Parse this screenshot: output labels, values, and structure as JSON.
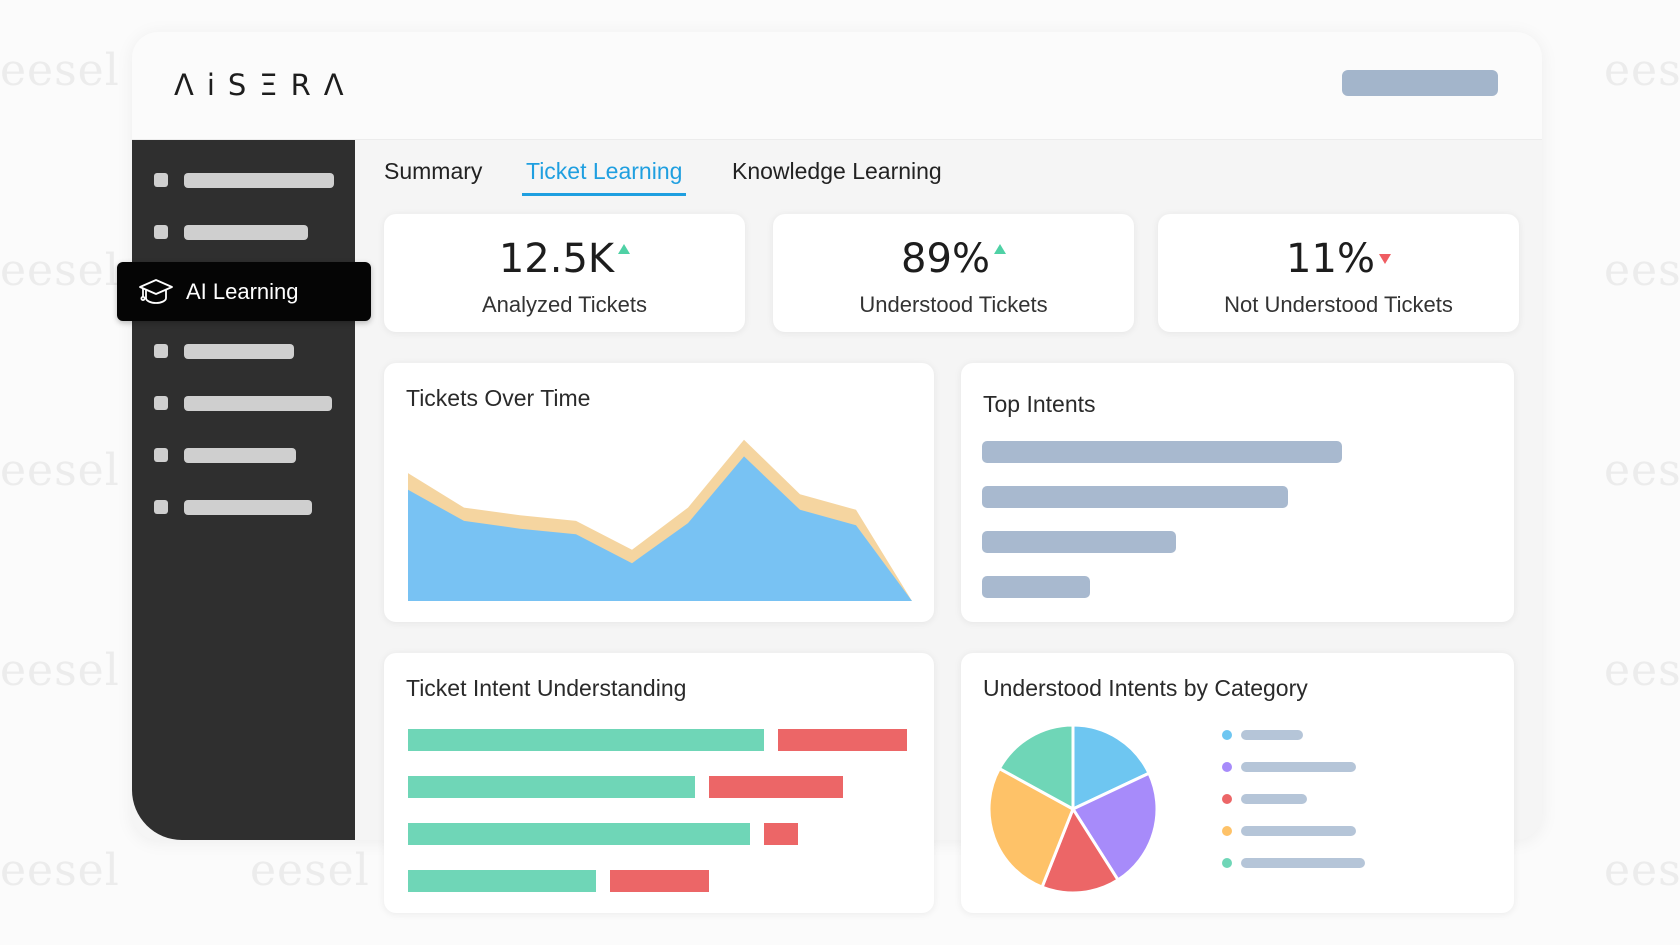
{
  "watermark": {
    "text": "eesel"
  },
  "header": {
    "logo": "ΛiSΞRΛ"
  },
  "sidebar": {
    "active_item": {
      "label": "AI Learning",
      "icon": "graduation-cap-icon"
    }
  },
  "tabs": [
    {
      "label": "Summary"
    },
    {
      "label": "Ticket Learning",
      "active": true
    },
    {
      "label": "Knowledge Learning"
    }
  ],
  "stats": [
    {
      "value": "12.5K",
      "label": "Analyzed Tickets",
      "trend": "up"
    },
    {
      "value": "89%",
      "label": "Understood Tickets",
      "trend": "up"
    },
    {
      "value": "11%",
      "label": "Not Understood Tickets",
      "trend": "down"
    }
  ],
  "cards": {
    "tickets_over_time": {
      "title": "Tickets Over Time"
    },
    "top_intents": {
      "title": "Top Intents"
    },
    "ticket_intent_understanding": {
      "title": "Ticket Intent Understanding"
    },
    "understood_by_category": {
      "title": "Understood Intents by Category"
    }
  },
  "colors": {
    "accent": "#1f9fe0",
    "area_blue": "#78c2f3",
    "area_orange": "#f5d5a0",
    "green": "#6fd6b7",
    "red": "#ec6667",
    "placeholder": "#a8b9cf"
  },
  "chart_data": [
    {
      "type": "area",
      "title": "Tickets Over Time",
      "x": [
        0,
        1,
        2,
        3,
        4,
        5,
        6,
        7,
        8,
        9
      ],
      "series": [
        {
          "values": [
            100,
            72,
            65,
            60,
            34,
            70,
            130,
            82,
            68,
            0
          ]
        },
        {
          "values": [
            115,
            84,
            77,
            72,
            46,
            84,
            145,
            96,
            82,
            0
          ]
        }
      ],
      "ylim": [
        0,
        160
      ]
    },
    {
      "type": "bar",
      "title": "Top Intents",
      "values": [
        100,
        85,
        54,
        30
      ],
      "xlim": [
        0,
        100
      ]
    },
    {
      "type": "bar",
      "title": "Ticket Intent Understanding",
      "series": [
        {
          "values": [
            72,
            58,
            69,
            38
          ]
        },
        {
          "values": [
            26,
            27,
            7,
            20
          ]
        }
      ]
    },
    {
      "type": "pie",
      "title": "Understood Intents by Category",
      "values": [
        18,
        23,
        15,
        27,
        17
      ],
      "colors": [
        "#6ec6f1",
        "#a78bfa",
        "#ec6667",
        "#fec268",
        "#6fd6b7"
      ]
    }
  ]
}
